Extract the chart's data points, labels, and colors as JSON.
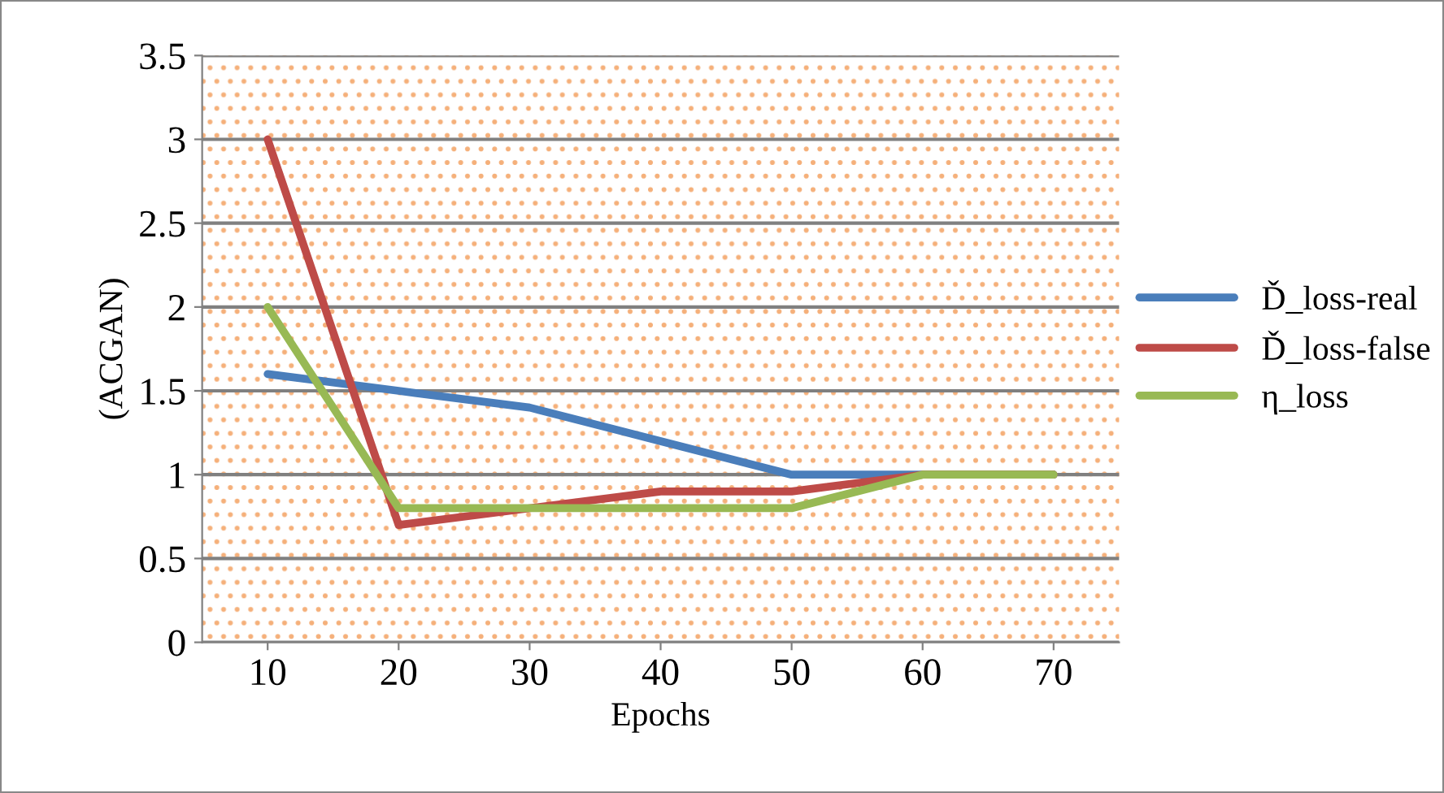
{
  "chart_data": {
    "type": "line",
    "xlabel": "Epochs",
    "ylabel": "(ACGAN)",
    "categories": [
      "10",
      "20",
      "30",
      "40",
      "50",
      "60",
      "70"
    ],
    "series": [
      {
        "name": "Ď_loss-real",
        "color": "#4a7ebb",
        "values": [
          1.6,
          1.5,
          1.4,
          1.2,
          1.0,
          1.0,
          1.0
        ]
      },
      {
        "name": "Ď_loss-false",
        "color": "#be4b48",
        "values": [
          3.0,
          0.7,
          0.8,
          0.9,
          0.9,
          1.0,
          1.0
        ]
      },
      {
        "name": "η_loss",
        "color": "#98b954",
        "values": [
          2.0,
          0.8,
          0.8,
          0.8,
          0.8,
          1.0,
          1.0
        ]
      }
    ],
    "ylim": [
      0,
      3.5
    ],
    "yticks": [
      0,
      0.5,
      1,
      1.5,
      2,
      2.5,
      3,
      3.5
    ],
    "grid": "y",
    "legend": "right",
    "marker": "none",
    "line_style": "solid"
  }
}
